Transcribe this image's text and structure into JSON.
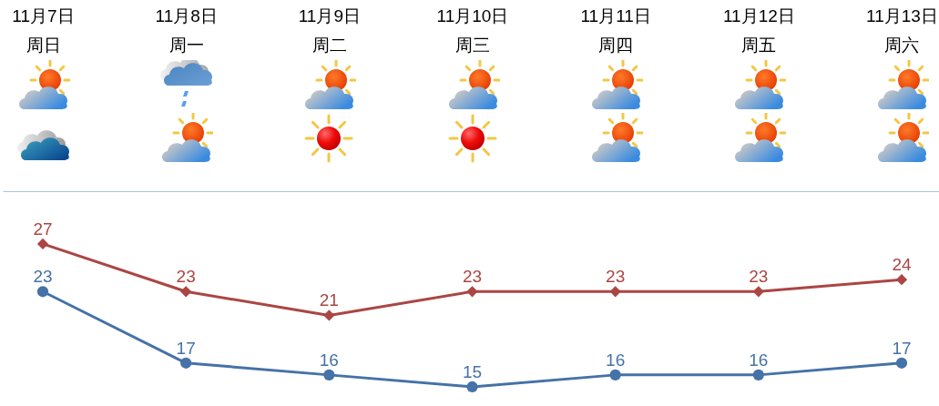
{
  "chart_data": {
    "type": "line",
    "categories": [
      "11月7日周日",
      "11月8日周一",
      "11月9日周二",
      "11月10日周三",
      "11月11日周四",
      "11月12日周五",
      "11月13日周六"
    ],
    "series": [
      {
        "color": "#aa4643",
        "marker": "diamond",
        "values": [
          27,
          23,
          21,
          23,
          23,
          23,
          24
        ]
      },
      {
        "color": "#4572a7",
        "marker": "circle",
        "values": [
          23,
          17,
          16,
          15,
          16,
          16,
          17
        ]
      }
    ],
    "data_labels": true
  }
}
